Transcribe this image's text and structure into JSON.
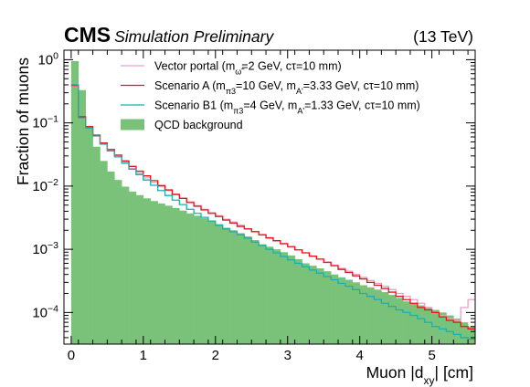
{
  "chart_data": {
    "type": "histogram",
    "experiment": "CMS",
    "label": "Simulation Preliminary",
    "energy": "(13 TeV)",
    "xlabel": "Muon |d",
    "xlabel_sub": "xy",
    "xlabel_unit": "| [cm]",
    "ylabel": "Fraction of muons",
    "xlim": [
      -0.1,
      5.6
    ],
    "ylim_log10": [
      -4.5,
      0.15
    ],
    "yscale": "log",
    "x_ticks": [
      {
        "value": 0,
        "label": "0"
      },
      {
        "value": 1,
        "label": "1"
      },
      {
        "value": 2,
        "label": "2"
      },
      {
        "value": 3,
        "label": "3"
      },
      {
        "value": 4,
        "label": "4"
      },
      {
        "value": 5,
        "label": "5"
      }
    ],
    "y_ticks": [
      {
        "exp": 0,
        "base": "10",
        "sup": "0"
      },
      {
        "exp": -1,
        "base": "10",
        "sup": "−1"
      },
      {
        "exp": -2,
        "base": "10",
        "sup": "−2"
      },
      {
        "exp": -3,
        "base": "10",
        "sup": "−3"
      },
      {
        "exp": -4,
        "base": "10",
        "sup": "−4"
      }
    ],
    "bin_width": 0.1,
    "bins_low_edge": 0.0,
    "legend_position": "top-right",
    "series": [
      {
        "name": "Vector portal",
        "legend_parts": [
          {
            "t": "Vector portal (m"
          },
          {
            "t": "ω̃",
            "sub": true
          },
          {
            "t": "=2 GeV, cτ=10 mm)"
          }
        ],
        "style": "step-line",
        "color": "#e8a0c8",
        "values": [
          0.38,
          0.12,
          0.085,
          0.063,
          0.047,
          0.037,
          0.03,
          0.024,
          0.019,
          0.016,
          0.0135,
          0.0115,
          0.0098,
          0.0085,
          0.0073,
          0.0064,
          0.0056,
          0.0049,
          0.0043,
          0.0038,
          0.0034,
          0.003,
          0.0027,
          0.0024,
          0.0021,
          0.0019,
          0.0017,
          0.0015,
          0.00135,
          0.0012,
          0.0011,
          0.00098,
          0.00088,
          0.00078,
          0.0007,
          0.00063,
          0.00056,
          0.0005,
          0.00045,
          0.0004,
          0.00036,
          0.00032,
          0.00029,
          0.00026,
          0.00023,
          0.0002,
          0.00018,
          0.00016,
          0.00014,
          0.00012,
          0.0001,
          9e-05,
          8e-05,
          7.5e-05,
          0.00012,
          0.00016
        ]
      },
      {
        "name": "Scenario A",
        "legend_parts": [
          {
            "t": "Scenario A (m"
          },
          {
            "t": "π3",
            "sub": true
          },
          {
            "t": "=10 GeV, m"
          },
          {
            "t": "A'",
            "sub": true
          },
          {
            "t": "=3.33 GeV, cτ=10 mm)"
          }
        ],
        "style": "step-line",
        "color": "#e8141c",
        "values": [
          0.39,
          0.125,
          0.087,
          0.064,
          0.048,
          0.038,
          0.031,
          0.025,
          0.0205,
          0.0172,
          0.0145,
          0.0122,
          0.0102,
          0.0087,
          0.0074,
          0.0064,
          0.0055,
          0.0048,
          0.0042,
          0.0037,
          0.0033,
          0.0029,
          0.0026,
          0.0023,
          0.0021,
          0.0019,
          0.0017,
          0.00152,
          0.00137,
          0.00123,
          0.0011,
          0.00098,
          0.00088,
          0.00078,
          0.0007,
          0.00062,
          0.00055,
          0.00048,
          0.00043,
          0.00038,
          0.00034,
          0.0003,
          0.00027,
          0.00024,
          0.00021,
          0.00018,
          0.00016,
          0.00014,
          0.00012,
          0.00011,
          0.0001,
          8.5e-05,
          7.5e-05,
          7e-05,
          6e-05,
          5.5e-05
        ]
      },
      {
        "name": "Scenario B1",
        "legend_parts": [
          {
            "t": "Scenario B1 (m"
          },
          {
            "t": "π3",
            "sub": true
          },
          {
            "t": "=4 GeV, m"
          },
          {
            "t": "A'",
            "sub": true
          },
          {
            "t": "=1.33 GeV, cτ=10 mm)"
          }
        ],
        "style": "step-line",
        "color": "#18b0b0",
        "values": [
          0.4,
          0.12,
          0.083,
          0.062,
          0.046,
          0.036,
          0.029,
          0.023,
          0.0185,
          0.0152,
          0.0125,
          0.0103,
          0.0085,
          0.0071,
          0.006,
          0.0051,
          0.0043,
          0.0037,
          0.0032,
          0.0028,
          0.0024,
          0.0021,
          0.0019,
          0.0017,
          0.0015,
          0.0013,
          0.00115,
          0.001,
          0.00088,
          0.00077,
          0.00068,
          0.0006,
          0.00053,
          0.00047,
          0.00042,
          0.00037,
          0.00033,
          0.00029,
          0.00026,
          0.00023,
          0.0002,
          0.00018,
          0.00016,
          0.00014,
          0.000125,
          0.00011,
          0.0001,
          9e-05,
          8e-05,
          7e-05,
          6e-05,
          5.5e-05,
          5e-05,
          4.5e-05,
          4e-05,
          3.8e-05
        ]
      },
      {
        "name": "QCD background",
        "legend_parts": [
          {
            "t": "QCD background"
          }
        ],
        "style": "filled",
        "color": "#7ac27a",
        "values": [
          0.95,
          0.33,
          0.09,
          0.042,
          0.025,
          0.017,
          0.0125,
          0.0098,
          0.0082,
          0.0072,
          0.0064,
          0.0058,
          0.0053,
          0.0049,
          0.0045,
          0.0041,
          0.0037,
          0.0034,
          0.0031,
          0.0028,
          0.0025,
          0.0022,
          0.002,
          0.0018,
          0.0016,
          0.0014,
          0.0012,
          0.0011,
          0.001,
          0.0009,
          0.0008,
          0.0007,
          0.0006,
          0.00055,
          0.0005,
          0.00045,
          0.0004,
          0.00036,
          0.00033,
          0.0003,
          0.00027,
          0.00025,
          0.00023,
          0.00021,
          0.00019,
          0.00017,
          0.00015,
          0.00014,
          0.00013,
          0.00012,
          0.00011,
          0.0001,
          9e-05,
          8e-05,
          7e-05,
          6e-05
        ]
      }
    ]
  }
}
